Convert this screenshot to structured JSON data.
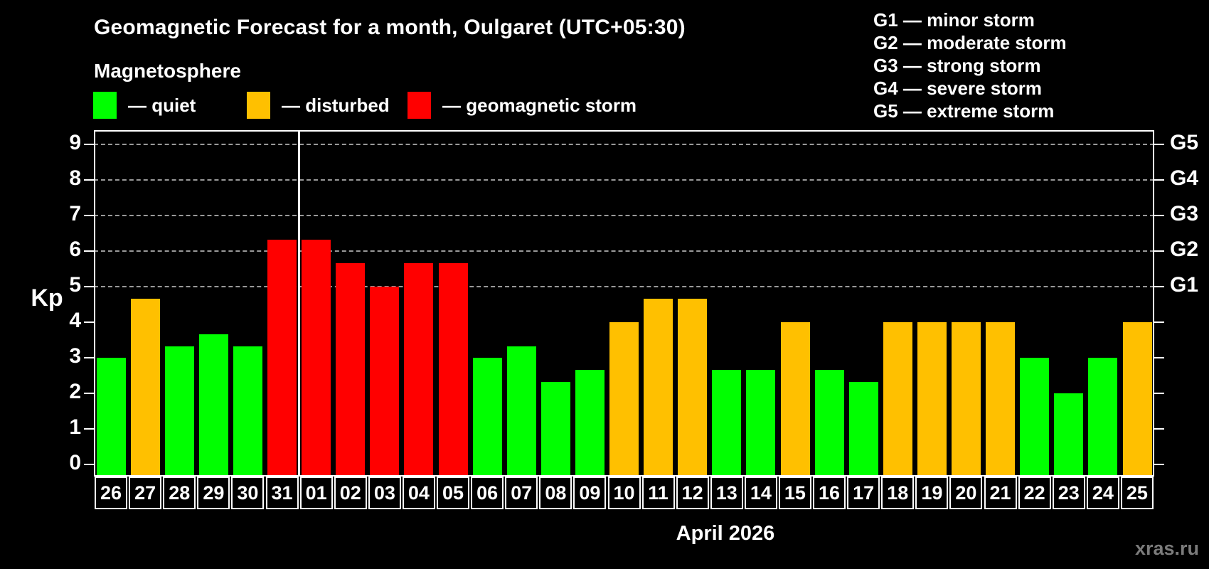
{
  "header": {
    "title": "Geomagnetic Forecast for a month, Oulgaret (UTC+05:30)",
    "subtitle": "Magnetosphere"
  },
  "legend": {
    "items": [
      {
        "key": "quiet",
        "label": "— quiet",
        "color": "#00ff00"
      },
      {
        "key": "disturbed",
        "label": "— disturbed",
        "color": "#ffc000"
      },
      {
        "key": "storm",
        "label": "— geomagnetic storm",
        "color": "#ff0000"
      }
    ]
  },
  "g_legend": [
    "G1 — minor storm",
    "G2 — moderate storm",
    "G3 — strong storm",
    "G4 — severe storm",
    "G5 — extreme storm"
  ],
  "axis": {
    "ylabel": "Kp",
    "left_ticks": [
      0,
      1,
      2,
      3,
      4,
      5,
      6,
      7,
      8,
      9
    ],
    "right_labels": [
      {
        "kp": 5,
        "label": "G1"
      },
      {
        "kp": 6,
        "label": "G2"
      },
      {
        "kp": 7,
        "label": "G3"
      },
      {
        "kp": 8,
        "label": "G4"
      },
      {
        "kp": 9,
        "label": "G5"
      }
    ]
  },
  "footer": {
    "xlabel": "April 2026",
    "watermark": "xras.ru"
  },
  "colors": {
    "background": "#000000",
    "quiet": "#00ff00",
    "disturbed": "#ffc000",
    "storm": "#ff0000",
    "grid": "#999999",
    "frame": "#ffffff",
    "watermark": "#7b7b7b"
  },
  "chart_data": {
    "type": "bar",
    "title": "Geomagnetic Forecast for a month, Oulgaret (UTC+05:30)",
    "xlabel": "April 2026",
    "ylabel": "Kp",
    "ylim": [
      0,
      9.4
    ],
    "grid": "dashed horizontal at Kp 5-9",
    "legend_position": "top",
    "categories": [
      "26",
      "27",
      "28",
      "29",
      "30",
      "31",
      "01",
      "02",
      "03",
      "04",
      "05",
      "06",
      "07",
      "08",
      "09",
      "10",
      "11",
      "12",
      "13",
      "14",
      "15",
      "16",
      "17",
      "18",
      "19",
      "20",
      "21",
      "22",
      "23",
      "24",
      "25"
    ],
    "values": [
      3.0,
      4.67,
      3.33,
      3.67,
      3.33,
      6.33,
      6.33,
      5.67,
      5.0,
      5.67,
      5.67,
      3.0,
      3.33,
      2.33,
      2.67,
      4.0,
      4.67,
      4.67,
      2.67,
      2.67,
      4.0,
      2.67,
      2.33,
      4.0,
      4.0,
      4.0,
      4.0,
      3.0,
      2.0,
      3.0,
      4.0
    ],
    "statuses": [
      "quiet",
      "disturbed",
      "quiet",
      "quiet",
      "quiet",
      "storm",
      "storm",
      "storm",
      "storm",
      "storm",
      "storm",
      "quiet",
      "quiet",
      "quiet",
      "quiet",
      "disturbed",
      "disturbed",
      "disturbed",
      "quiet",
      "quiet",
      "disturbed",
      "quiet",
      "quiet",
      "disturbed",
      "disturbed",
      "disturbed",
      "disturbed",
      "quiet",
      "quiet",
      "quiet",
      "disturbed"
    ],
    "gridline_kp": [
      5,
      6,
      7,
      8,
      9
    ],
    "month_boundary_after_index": 5
  }
}
